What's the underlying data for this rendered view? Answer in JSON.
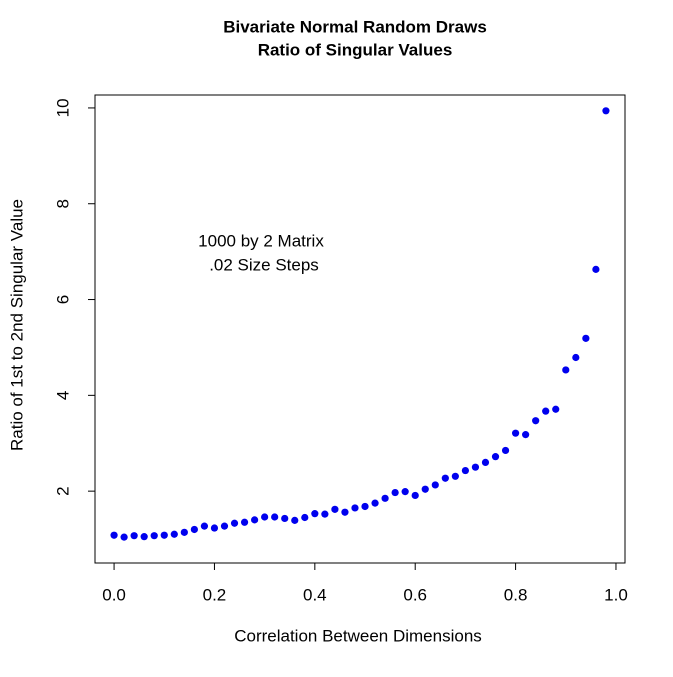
{
  "chart_data": {
    "type": "scatter",
    "title": [
      "Bivariate Normal Random Draws",
      "Ratio of Singular Values"
    ],
    "xlabel": "Correlation Between Dimensions",
    "ylabel": "Ratio of 1st to 2nd Singular Value",
    "annotations": [
      "1000 by 2 Matrix",
      ".02 Size Steps"
    ],
    "color": "#0000ee",
    "x": [
      0,
      0.02,
      0.04,
      0.06,
      0.08,
      0.1,
      0.12,
      0.14,
      0.16,
      0.18,
      0.2,
      0.22,
      0.24,
      0.26,
      0.28,
      0.3,
      0.32,
      0.34,
      0.36,
      0.38,
      0.4,
      0.42,
      0.44,
      0.46,
      0.48,
      0.5,
      0.52,
      0.54,
      0.56,
      0.58,
      0.6,
      0.62,
      0.64,
      0.66,
      0.68,
      0.7,
      0.72,
      0.74,
      0.76,
      0.78,
      0.8,
      0.82,
      0.84,
      0.86,
      0.88,
      0.9,
      0.92,
      0.94,
      0.96,
      0.98
    ],
    "values": [
      1.08,
      1.04,
      1.07,
      1.05,
      1.07,
      1.08,
      1.1,
      1.14,
      1.2,
      1.27,
      1.23,
      1.27,
      1.33,
      1.35,
      1.4,
      1.46,
      1.46,
      1.43,
      1.39,
      1.45,
      1.53,
      1.52,
      1.62,
      1.56,
      1.65,
      1.68,
      1.75,
      1.85,
      1.97,
      1.99,
      1.91,
      2.04,
      2.13,
      2.27,
      2.31,
      2.43,
      2.5,
      2.6,
      2.72,
      2.85,
      3.21,
      3.18,
      3.47,
      3.67,
      3.71,
      4.53,
      4.79,
      5.19,
      6.63,
      9.94
    ],
    "xlim": [
      -0.038,
      1.018
    ],
    "ylim": [
      0.5,
      10.27
    ],
    "xticks": [
      {
        "value": 0,
        "label": "0.0"
      },
      0.2,
      0.4,
      0.6,
      0.8,
      {
        "value": 1,
        "label": "1.0"
      }
    ],
    "yticks": [
      2,
      4,
      6,
      8,
      10
    ]
  }
}
